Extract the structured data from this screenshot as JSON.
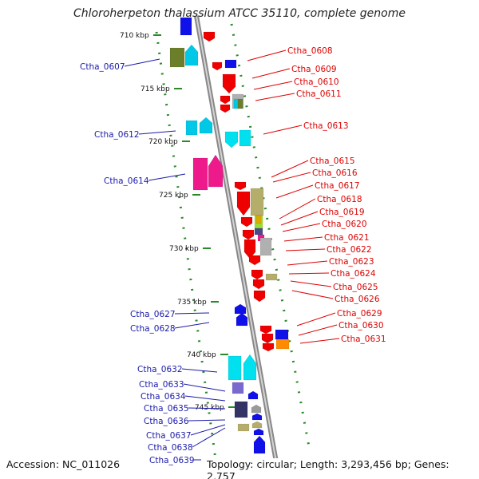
{
  "title": "Chloroherpeton thalassium ATCC 35110, complete genome",
  "footer": {
    "accession": "Accession: NC_011026",
    "summary": "Topology: circular; Length: 3,293,456 bp; Genes: 2,757"
  },
  "colors": {
    "backbone": "#999999",
    "forward_label": "#1a1aaa",
    "reverse_label": "#dd0000",
    "tick_dot": "#2a8a2a"
  },
  "ticks": [
    {
      "label": "710 kbp"
    },
    {
      "label": "715 kbp"
    },
    {
      "label": "720 kbp"
    },
    {
      "label": "725 kbp"
    },
    {
      "label": "730 kbp"
    },
    {
      "label": "735 kbp"
    },
    {
      "label": "740 kbp"
    },
    {
      "label": "745 kbp"
    }
  ],
  "forward_genes": [
    {
      "label": "Ctha_0607",
      "color": "#6b7f2a"
    },
    {
      "label": "Ctha_0612",
      "color": "#00c8e6"
    },
    {
      "label": "Ctha_0614",
      "color": "#ee1a8c"
    },
    {
      "label": "Ctha_0627",
      "color": "#1010e8"
    },
    {
      "label": "Ctha_0628",
      "color": "#1010e8"
    },
    {
      "label": "Ctha_0632",
      "color": "#00e0ee"
    },
    {
      "label": "Ctha_0633",
      "color": "#7a6ad0"
    },
    {
      "label": "Ctha_0634",
      "color": "#1010e8"
    },
    {
      "label": "Ctha_0635",
      "color": "#333366"
    },
    {
      "label": "Ctha_0636",
      "color": "#9a9a9a"
    },
    {
      "label": "Ctha_0637",
      "color": "#1010e8"
    },
    {
      "label": "Ctha_0638",
      "color": "#b5ad6a"
    },
    {
      "label": "Ctha_0639",
      "color": "#1010e8"
    }
  ],
  "reverse_genes": [
    {
      "label": "Ctha_0608",
      "color": "#ee0000"
    },
    {
      "label": "Ctha_0609",
      "color": "#1010e8"
    },
    {
      "label": "Ctha_0610",
      "color": "#ee0000"
    },
    {
      "label": "Ctha_0611",
      "color": "#b0b0b0"
    },
    {
      "label": "Ctha_0613",
      "color": "#00e0ee"
    },
    {
      "label": "Ctha_0615",
      "color": "#ee0000"
    },
    {
      "label": "Ctha_0616",
      "color": "#b5ad6a"
    },
    {
      "label": "Ctha_0617",
      "color": "#ee0000"
    },
    {
      "label": "Ctha_0618",
      "color": "#99dd33"
    },
    {
      "label": "Ctha_0619",
      "color": "#ee1a8c"
    },
    {
      "label": "Ctha_0620",
      "color": "#4a4a8a"
    },
    {
      "label": "Ctha_0621",
      "color": "#ee0000"
    },
    {
      "label": "Ctha_0622",
      "color": "#b0b0b0"
    },
    {
      "label": "Ctha_0623",
      "color": "#ee0000"
    },
    {
      "label": "Ctha_0624",
      "color": "#b5ad6a"
    },
    {
      "label": "Ctha_0625",
      "color": "#ee0000"
    },
    {
      "label": "Ctha_0626",
      "color": "#ee0000"
    },
    {
      "label": "Ctha_0629",
      "color": "#ee0000"
    },
    {
      "label": "Ctha_0630",
      "color": "#1010e8"
    },
    {
      "label": "Ctha_0631",
      "color": "#ff8c00"
    }
  ]
}
